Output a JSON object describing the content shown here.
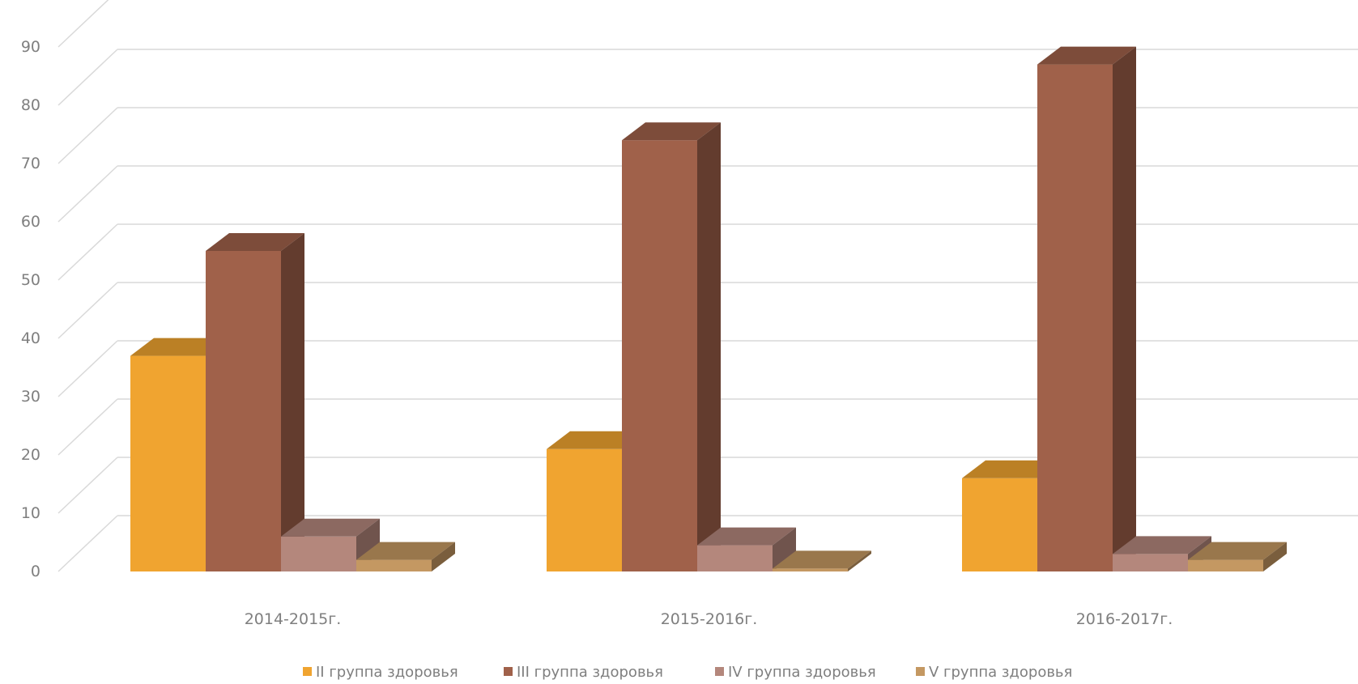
{
  "chart_data": {
    "type": "bar",
    "style": "3d-clustered-column",
    "categories": [
      "2014-2015г.",
      "2015-2016г.",
      "2016-2017г."
    ],
    "series": [
      {
        "name": "II группа здоровья",
        "values": [
          37,
          21,
          16
        ],
        "color": "#f0a430"
      },
      {
        "name": "III группа здоровья",
        "values": [
          55,
          74,
          87
        ],
        "color": "#a0614a"
      },
      {
        "name": "IV группа здоровья",
        "values": [
          6,
          4.5,
          3
        ],
        "color": "#b4877c"
      },
      {
        "name": "V группа здоровья",
        "values": [
          2,
          0.5,
          2
        ],
        "color": "#c49862"
      }
    ],
    "y_ticks": [
      "0",
      "10",
      "20",
      "30",
      "40",
      "50",
      "60",
      "70",
      "80",
      "90"
    ],
    "ylim": [
      0,
      95
    ],
    "grid": true,
    "legend_position": "bottom",
    "gridline_color": "#d9d9d9",
    "label_color": "#7f7f7f"
  }
}
